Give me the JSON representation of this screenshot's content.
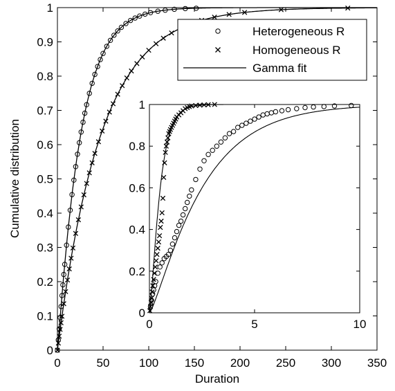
{
  "chart_data": [
    {
      "type": "line",
      "xlabel": "Duration",
      "ylabel": "Cumulative distribution",
      "xlim": [
        0,
        350
      ],
      "ylim": [
        0,
        1
      ],
      "x_ticks": [
        "0",
        "50",
        "100",
        "150",
        "200",
        "250",
        "300",
        "350"
      ],
      "y_ticks": [
        "0",
        "0.1",
        "0.2",
        "0.3",
        "0.4",
        "0.5",
        "0.6",
        "0.7",
        "0.8",
        "0.9",
        "1"
      ],
      "legend_position": "top-right",
      "series": [
        {
          "name": "Heterogeneous R",
          "marker": "circle",
          "cdf": "gamma",
          "shape": 1.1,
          "scale": 23,
          "x": [
            0,
            1,
            2,
            3,
            4,
            5,
            6,
            7,
            8,
            10,
            12,
            14,
            16,
            18,
            20,
            22,
            24,
            26,
            28,
            30,
            32,
            35,
            38,
            41,
            44,
            47,
            50,
            54,
            58,
            62,
            66,
            70,
            75,
            80,
            85,
            90,
            96,
            102,
            110,
            118,
            128,
            140,
            152
          ]
        },
        {
          "name": "Homogeneous R",
          "marker": "x",
          "cdf": "gamma",
          "shape": 1.0,
          "scale": 48,
          "x": [
            0,
            1,
            2,
            3,
            4,
            5,
            7,
            9,
            11,
            13,
            15,
            17,
            20,
            23,
            26,
            29,
            32,
            35,
            38,
            41,
            45,
            49,
            53,
            57,
            61,
            66,
            71,
            76,
            81,
            87,
            93,
            100,
            108,
            116,
            125,
            135,
            146,
            158,
            172,
            188,
            205,
            245,
            318
          ]
        },
        {
          "name": "Gamma fit",
          "marker": "line"
        }
      ]
    },
    {
      "type": "line",
      "inset": true,
      "xlim": [
        0,
        10
      ],
      "ylim": [
        0,
        1
      ],
      "x_ticks": [
        "0",
        "5",
        "10"
      ],
      "y_ticks": [
        "0",
        "0.2",
        "0.4",
        "0.6",
        "0.8",
        "1"
      ],
      "series": [
        {
          "name": "",
          "marker": "circle",
          "x": [
            0.05,
            0.1,
            0.15,
            0.2,
            0.25,
            0.3,
            0.4,
            0.5,
            0.6,
            0.7,
            0.8,
            0.9,
            1.0,
            1.1,
            1.2,
            1.3,
            1.4,
            1.5,
            1.6,
            1.7,
            1.8,
            1.9,
            2.0,
            2.2,
            2.4,
            2.6,
            2.8,
            3.0,
            3.2,
            3.4,
            3.6,
            3.8,
            4.0,
            4.2,
            4.4,
            4.6,
            4.8,
            5.0,
            5.2,
            5.4,
            5.6,
            5.8,
            6.0,
            6.3,
            6.6,
            7.0,
            7.4,
            7.8,
            8.3,
            8.8,
            9.6
          ],
          "y": [
            0.03,
            0.06,
            0.09,
            0.11,
            0.13,
            0.15,
            0.19,
            0.22,
            0.24,
            0.26,
            0.27,
            0.28,
            0.3,
            0.33,
            0.36,
            0.39,
            0.42,
            0.44,
            0.47,
            0.5,
            0.53,
            0.56,
            0.59,
            0.64,
            0.69,
            0.73,
            0.76,
            0.78,
            0.8,
            0.82,
            0.84,
            0.86,
            0.87,
            0.89,
            0.9,
            0.91,
            0.92,
            0.93,
            0.94,
            0.95,
            0.955,
            0.96,
            0.965,
            0.97,
            0.975,
            0.98,
            0.985,
            0.988,
            0.99,
            0.993,
            0.995
          ]
        },
        {
          "name": "",
          "marker": "x",
          "x": [
            0.02,
            0.05,
            0.08,
            0.1,
            0.13,
            0.16,
            0.2,
            0.24,
            0.28,
            0.32,
            0.36,
            0.4,
            0.44,
            0.48,
            0.52,
            0.56,
            0.6,
            0.64,
            0.68,
            0.72,
            0.76,
            0.8,
            0.84,
            0.88,
            0.92,
            0.96,
            1.0,
            1.05,
            1.1,
            1.15,
            1.2,
            1.25,
            1.3,
            1.4,
            1.5,
            1.6,
            1.7,
            1.8,
            1.9,
            2.0,
            2.2,
            2.4,
            2.6,
            2.8,
            3.1
          ],
          "y": [
            0.01,
            0.03,
            0.05,
            0.07,
            0.1,
            0.13,
            0.16,
            0.19,
            0.22,
            0.25,
            0.28,
            0.31,
            0.34,
            0.37,
            0.41,
            0.44,
            0.48,
            0.55,
            0.65,
            0.72,
            0.77,
            0.8,
            0.82,
            0.84,
            0.86,
            0.87,
            0.88,
            0.89,
            0.9,
            0.91,
            0.92,
            0.93,
            0.94,
            0.95,
            0.96,
            0.97,
            0.98,
            0.985,
            0.99,
            0.993,
            0.995,
            0.997,
            0.998,
            0.999,
            1.0
          ]
        },
        {
          "name": "",
          "marker": "line",
          "cdf": "gamma",
          "shape": 1.3,
          "scale": 2.0
        },
        {
          "name": "",
          "marker": "line",
          "cdf": "gamma",
          "shape": 1.5,
          "scale": 0.35
        }
      ]
    }
  ]
}
